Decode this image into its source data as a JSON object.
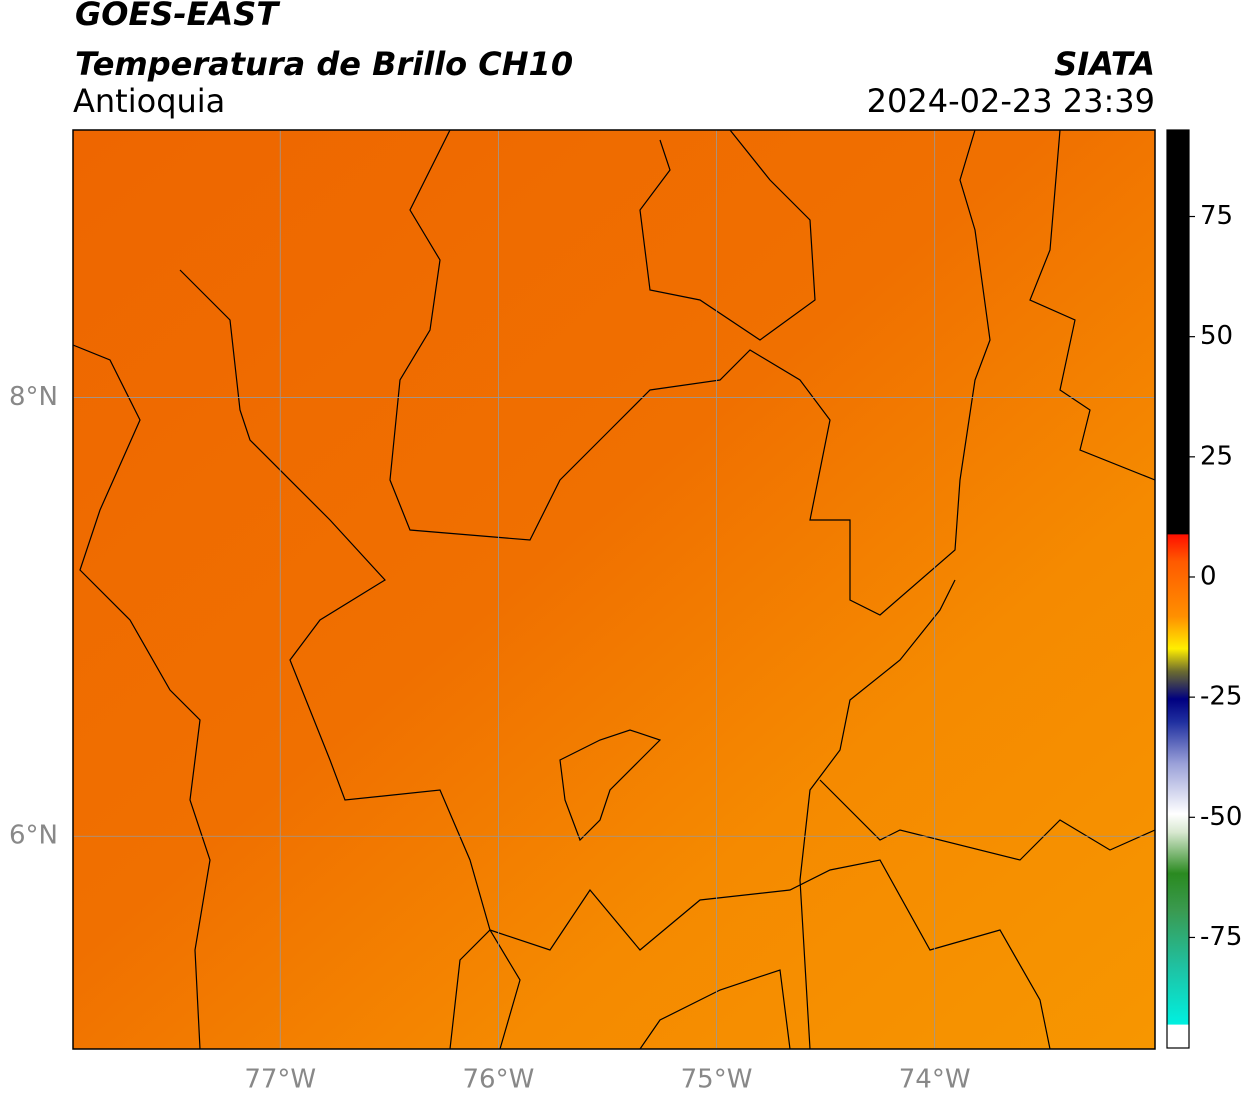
{
  "map": {
    "title": "GOES-EAST",
    "subtitle": "Temperatura de Brillo CH10",
    "region": "Antioquia",
    "source": "SIATA",
    "timestamp": "2024-02-23 23:39",
    "xlim": [
      -77.95,
      -72.99
    ],
    "ylim": [
      5.03,
      9.22
    ],
    "xticks": [
      {
        "value": -77,
        "label": "77°W"
      },
      {
        "value": -76,
        "label": "76°W"
      },
      {
        "value": -75,
        "label": "75°W"
      },
      {
        "value": -74,
        "label": "74°W"
      }
    ],
    "yticks": [
      {
        "value": 8,
        "label": "8°N"
      },
      {
        "value": 6,
        "label": "6°N"
      }
    ],
    "colorbar": {
      "lim": [
        -98,
        93
      ],
      "ticks": [
        75,
        50,
        25,
        0,
        -25,
        -50,
        -75
      ]
    }
  }
}
